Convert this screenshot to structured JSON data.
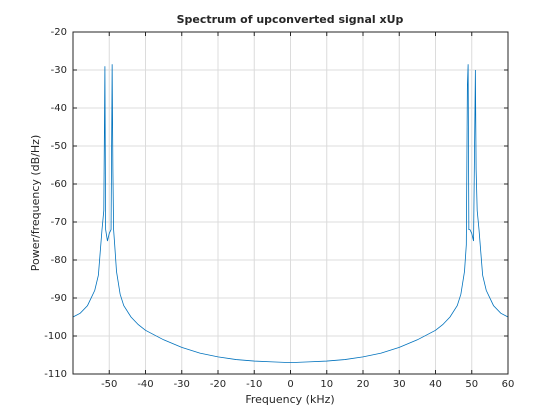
{
  "chart_data": {
    "type": "line",
    "title": "Spectrum of upconverted signal xUp",
    "x_label": "Frequency (kHz)",
    "y_label": "Power/frequency (dB/Hz)",
    "xlim": [
      -60,
      60
    ],
    "ylim": [
      -110,
      -20
    ],
    "xticks": [
      -50,
      -40,
      -30,
      -20,
      -10,
      0,
      10,
      20,
      30,
      40,
      50,
      60
    ],
    "yticks": [
      -110,
      -100,
      -90,
      -80,
      -70,
      -60,
      -50,
      -40,
      -30,
      -20
    ],
    "grid": true,
    "x": [
      -60,
      -58,
      -56,
      -54,
      -53,
      -52.5,
      -52,
      -51.5,
      -51.2,
      -51,
      -50.5,
      -50,
      -49.5,
      -49.2,
      -49,
      -48.8,
      -48.5,
      -48,
      -47,
      -46,
      -44,
      -42,
      -40,
      -35,
      -30,
      -25,
      -20,
      -15,
      -10,
      -5,
      0,
      5,
      10,
      15,
      20,
      25,
      30,
      35,
      40,
      42,
      44,
      46,
      47,
      48,
      48.5,
      48.8,
      49,
      49.2,
      49.5,
      50,
      50.5,
      51,
      51.2,
      51.5,
      52,
      52.5,
      53,
      54,
      56,
      58,
      60
    ],
    "series": [
      {
        "name": "xUp",
        "color": "#0072bd",
        "values": [
          -95,
          -94,
          -92,
          -88,
          -84,
          -78,
          -72,
          -67,
          -29,
          -72,
          -75,
          -73,
          -72,
          -28.5,
          -56,
          -72,
          -76,
          -83,
          -89,
          -92,
          -95,
          -97,
          -98.5,
          -101,
          -103,
          -104.5,
          -105.5,
          -106.2,
          -106.6,
          -106.8,
          -107,
          -106.8,
          -106.6,
          -106.2,
          -105.5,
          -104.5,
          -103,
          -101,
          -98.5,
          -97,
          -95,
          -92,
          -89,
          -83,
          -76,
          -34,
          -28.5,
          -72,
          -72,
          -73,
          -75,
          -30,
          -56,
          -67,
          -72,
          -78,
          -84,
          -88,
          -92,
          -94,
          -95
        ]
      }
    ]
  }
}
